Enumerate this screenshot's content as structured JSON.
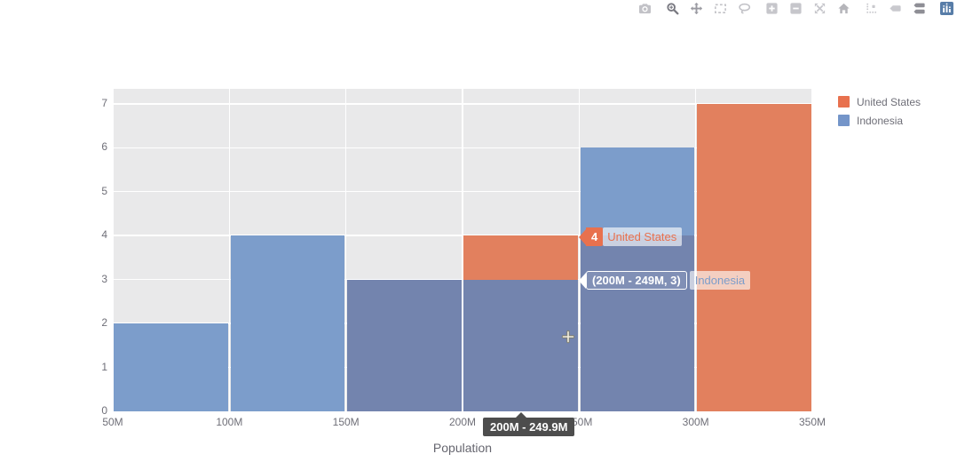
{
  "page": {
    "background": "#FFFFFF"
  },
  "modebar": {
    "icons": [
      {
        "name": "camera"
      },
      {
        "name": "zoom"
      },
      {
        "name": "pan"
      },
      {
        "name": "box-select"
      },
      {
        "name": "lasso-select"
      },
      {
        "name": "zoom-in"
      },
      {
        "name": "zoom-out"
      },
      {
        "name": "autoscale"
      },
      {
        "name": "reset-axes-home"
      },
      {
        "name": "toggle-spikelines"
      },
      {
        "name": "hover-closest"
      },
      {
        "name": "hover-compare"
      },
      {
        "name": "plotly-logo"
      }
    ]
  },
  "legend": {
    "items": [
      {
        "label": "United States",
        "color": "#E8714E"
      },
      {
        "label": "Indonesia",
        "color": "#7495C9"
      }
    ]
  },
  "chart_data": {
    "type": "bar",
    "subtype": "overlaid-histogram",
    "title": "",
    "xlabel": "Population",
    "ylabel": "",
    "x_tick_labels": [
      "50M",
      "100M",
      "150M",
      "200M",
      "250M",
      "300M",
      "350M"
    ],
    "bin_edges_millions": [
      50,
      100,
      150,
      200,
      250,
      300,
      350
    ],
    "y_ticks": [
      0,
      1,
      2,
      3,
      4,
      5,
      6,
      7
    ],
    "ylim": [
      0,
      7.34
    ],
    "series": [
      {
        "name": "United States",
        "bar_color": "#E2805E",
        "values": [
          0,
          0,
          3,
          4,
          4,
          7
        ]
      },
      {
        "name": "Indonesia",
        "bar_color": "#7C9DCB",
        "values": [
          2,
          4,
          3,
          3,
          6,
          0
        ]
      }
    ],
    "overlap_color": "#7384AE",
    "plot_background": "#E9E9EA",
    "grid_color": "#FFFFFF",
    "grid": true,
    "legend_position": "top-right-outside"
  },
  "tooltips": {
    "us_hover": {
      "value": "4",
      "series": "United States"
    },
    "indonesia_hover": {
      "value": "(200M - 249M, 3)",
      "series": "Indonesia"
    },
    "x_axis_hover": {
      "text": "200M - 249.9M"
    }
  },
  "colors": {
    "axis_text": "#6F6F78",
    "axis_tooltip_bg": "#4D4D4D",
    "us_accent": "#E8714E",
    "indonesia_accent": "#7C9DCB"
  }
}
